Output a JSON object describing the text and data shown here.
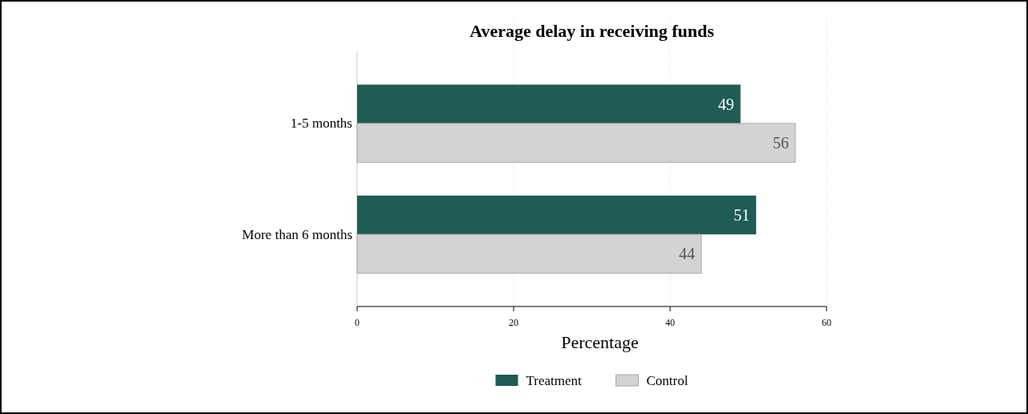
{
  "chart_data": {
    "type": "bar",
    "orientation": "horizontal",
    "title": "Average delay in receiving funds",
    "xlabel": "Percentage",
    "categories": [
      "1-5 months",
      "More than 6 months"
    ],
    "series": [
      {
        "name": "Treatment",
        "color": "#1e5c55",
        "values": [
          49,
          51
        ]
      },
      {
        "name": "Control",
        "color": "#d3d3d3",
        "values": [
          56,
          44
        ]
      }
    ],
    "xlim": [
      0,
      60
    ],
    "xticks": [
      0,
      20,
      40,
      60
    ],
    "grid": "x",
    "legend": "bottom",
    "data_labels": true
  }
}
